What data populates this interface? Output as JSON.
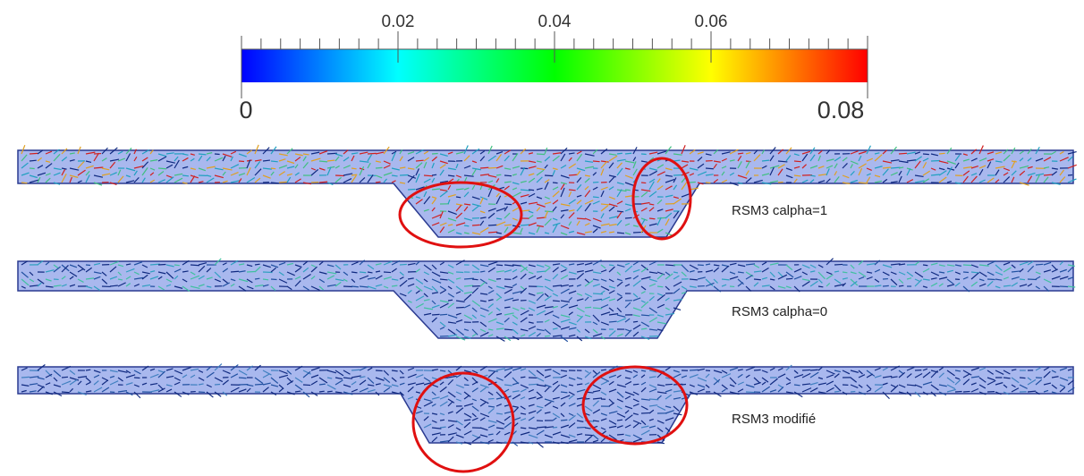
{
  "colorbar": {
    "min": 0,
    "max": 0.08,
    "ticks": [
      0.02,
      0.04,
      0.06
    ]
  },
  "panels": [
    {
      "label": "RSM3 calpha=1"
    },
    {
      "label": "RSM3 calpha=0"
    },
    {
      "label": "RSM3 modifié"
    }
  ]
}
